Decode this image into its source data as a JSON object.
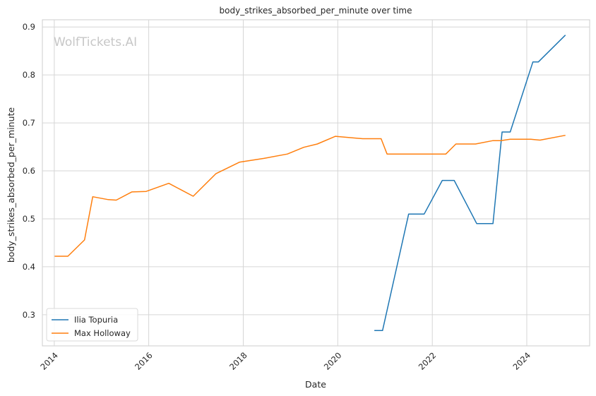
{
  "chart_data": {
    "type": "line",
    "title": "body_strikes_absorbed_per_minute over time",
    "xlabel": "Date",
    "ylabel": "body_strikes_absorbed_per_minute",
    "watermark": "WolfTickets.AI",
    "x_ticks": [
      "2014",
      "2016",
      "2018",
      "2020",
      "2022",
      "2024"
    ],
    "y_ticks": [
      "0.3",
      "0.4",
      "0.5",
      "0.6",
      "0.7",
      "0.8",
      "0.9"
    ],
    "xlim": [
      "2013-10-01",
      "2025-05-01"
    ],
    "ylim": [
      0.235,
      0.915
    ],
    "grid": true,
    "legend_position": "lower-left",
    "series": [
      {
        "name": "Ilia Topuria",
        "color": "#1f77b4",
        "points": [
          [
            "2020-10-10",
            0.267
          ],
          [
            "2020-12-12",
            0.267
          ],
          [
            "2021-07-02",
            0.51
          ],
          [
            "2021-10-30",
            0.51
          ],
          [
            "2022-03-19",
            0.58
          ],
          [
            "2022-06-19",
            0.58
          ],
          [
            "2022-12-10",
            0.49
          ],
          [
            "2023-04-15",
            0.49
          ],
          [
            "2023-06-24",
            0.681
          ],
          [
            "2023-08-26",
            0.681
          ],
          [
            "2024-02-17",
            0.827
          ],
          [
            "2024-03-30",
            0.827
          ],
          [
            "2024-10-26",
            0.883
          ]
        ]
      },
      {
        "name": "Max Holloway",
        "color": "#ff7f0e",
        "points": [
          [
            "2014-01-04",
            0.422
          ],
          [
            "2014-04-16",
            0.422
          ],
          [
            "2014-08-23",
            0.456
          ],
          [
            "2014-10-25",
            0.546
          ],
          [
            "2015-02-22",
            0.54
          ],
          [
            "2015-04-25",
            0.539
          ],
          [
            "2015-08-23",
            0.556
          ],
          [
            "2015-12-12",
            0.557
          ],
          [
            "2016-06-04",
            0.574
          ],
          [
            "2016-12-10",
            0.547
          ],
          [
            "2017-06-03",
            0.594
          ],
          [
            "2017-12-02",
            0.618
          ],
          [
            "2018-06-09",
            0.626
          ],
          [
            "2018-12-08",
            0.635
          ],
          [
            "2019-04-13",
            0.649
          ],
          [
            "2019-07-27",
            0.656
          ],
          [
            "2019-12-14",
            0.672
          ],
          [
            "2020-07-12",
            0.667
          ],
          [
            "2020-12-01",
            0.667
          ],
          [
            "2021-01-16",
            0.635
          ],
          [
            "2021-07-17",
            0.635
          ],
          [
            "2022-02-01",
            0.635
          ],
          [
            "2022-04-16",
            0.635
          ],
          [
            "2022-07-02",
            0.656
          ],
          [
            "2022-12-01",
            0.656
          ],
          [
            "2023-04-15",
            0.663
          ],
          [
            "2023-06-15",
            0.663
          ],
          [
            "2023-08-26",
            0.666
          ],
          [
            "2024-01-10",
            0.666
          ],
          [
            "2024-02-01",
            0.666
          ],
          [
            "2024-04-13",
            0.664
          ],
          [
            "2024-10-26",
            0.674
          ]
        ]
      }
    ]
  }
}
